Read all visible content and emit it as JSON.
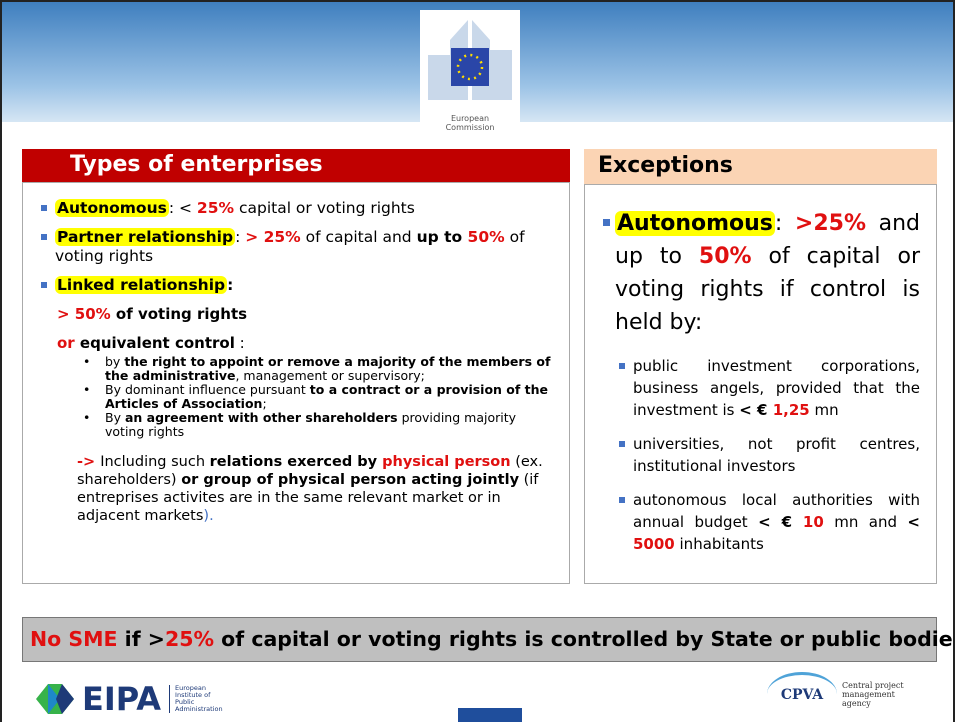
{
  "logo": {
    "line1": "European",
    "line2": "Commission"
  },
  "left": {
    "title": "Types of enterprises",
    "item1": [
      "Autonomous",
      ": < ",
      "25%",
      " capital or voting rights"
    ],
    "item2": [
      "Partner relationship",
      ": ",
      "> 25%",
      " of capital and ",
      "up to ",
      "50%",
      " of voting rights"
    ],
    "item3": [
      "Linked relationship",
      ":"
    ],
    "sub1": [
      "> 50%",
      " of voting rights"
    ],
    "sub2": [
      "or",
      " equivalent control",
      " :"
    ],
    "bullets": [
      [
        "by ",
        "the right to appoint or remove a majority of the members of the administrative",
        ", management or supervisory;"
      ],
      [
        "By dominant influence pursuant ",
        "to a contract or a provision of the Articles of Association",
        ";"
      ],
      [
        "By ",
        "an agreement with other shareholders",
        " providing majority voting rights"
      ]
    ],
    "note": [
      "-> ",
      "Including such ",
      "relations exerced by ",
      "physical person",
      " (ex. shareholders) ",
      "or group of physical person acting jointly",
      " (if entreprises activites are in the same relevant market or in adjacent markets",
      ")."
    ]
  },
  "right": {
    "title": "Exceptions",
    "lead": [
      "Autonomous",
      ": ",
      ">25%",
      " and up to ",
      "50%",
      " of capital or voting rights if control is held by:"
    ],
    "items": [
      [
        "public investment corporations, business angels, provided that the investment is ",
        "< € ",
        "1,25",
        " mn"
      ],
      [
        "universities, not profit centres, institutional investors"
      ],
      [
        "autonomous local authorities with annual budget ",
        "< € ",
        "10",
        " mn and ",
        "< ",
        "5000",
        " inhabitants"
      ]
    ]
  },
  "footer": [
    "No SME",
    " if ",
    ">",
    "25%",
    " of capital or voting rights is controlled by State or public bodies"
  ],
  "eipa": {
    "name": "EIPA",
    "desc": [
      "European",
      "Institute of",
      "Public",
      "Administration"
    ]
  },
  "cpva": {
    "name": "CPVA",
    "desc": [
      "Central project",
      "management",
      "agency"
    ]
  }
}
